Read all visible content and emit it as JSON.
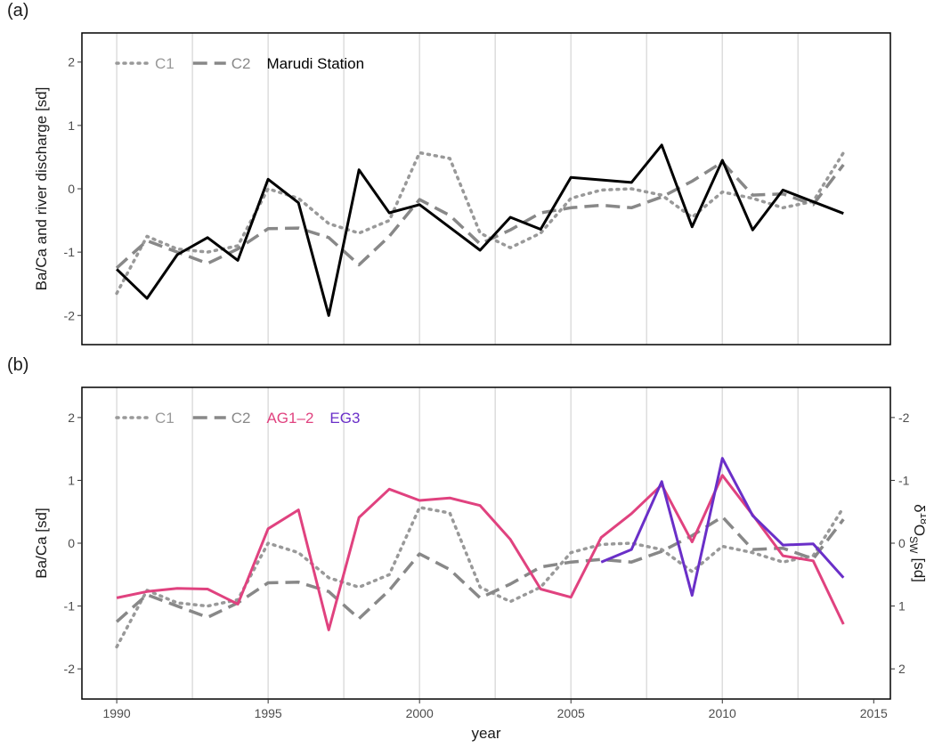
{
  "chart_data": [
    {
      "type": "line",
      "panel_label": "(a)",
      "ylabel": "Ba/Ca and river discharge [sd]",
      "xlim": [
        1988.85,
        2015.55
      ],
      "ylim": [
        -2.46,
        2.46
      ],
      "yticks": [
        -2,
        -1,
        0,
        1,
        2
      ],
      "xgrid": [
        1990,
        1992.5,
        1995,
        1997.5,
        2000,
        2002.5,
        2005,
        2007.5,
        2010,
        2012.5
      ],
      "series": [
        {
          "name": "C1",
          "color": "#999999",
          "style": "dotted",
          "x": [
            1990,
            1991,
            1992,
            1993,
            1994,
            1995,
            1996,
            1997,
            1998,
            1999,
            2000,
            2001,
            2002,
            2003,
            2004,
            2005,
            2006,
            2007,
            2008,
            2009,
            2010,
            2011,
            2012,
            2013,
            2014
          ],
          "values": [
            -1.65,
            -0.75,
            -0.95,
            -1.0,
            -0.9,
            0.0,
            -0.15,
            -0.55,
            -0.7,
            -0.5,
            0.57,
            0.48,
            -0.7,
            -0.93,
            -0.7,
            -0.15,
            -0.02,
            0.0,
            -0.1,
            -0.45,
            -0.05,
            -0.15,
            -0.3,
            -0.2,
            0.57
          ]
        },
        {
          "name": "C2",
          "color": "#888888",
          "style": "dashed",
          "x": [
            1990,
            1991,
            1992,
            1993,
            1994,
            1995,
            1996,
            1997,
            1998,
            1999,
            2000,
            2001,
            2002,
            2003,
            2004,
            2005,
            2006,
            2007,
            2008,
            2009,
            2010,
            2011,
            2012,
            2013,
            2014
          ],
          "values": [
            -1.25,
            -0.82,
            -1.0,
            -1.18,
            -0.95,
            -0.63,
            -0.62,
            -0.77,
            -1.2,
            -0.75,
            -0.17,
            -0.42,
            -0.87,
            -0.65,
            -0.38,
            -0.3,
            -0.26,
            -0.3,
            -0.13,
            0.12,
            0.42,
            -0.1,
            -0.08,
            -0.25,
            0.38
          ]
        },
        {
          "name": "Marudi Station",
          "color": "#000000",
          "style": "solid",
          "x": [
            1990,
            1991,
            1992,
            1993,
            1994,
            1995,
            1996,
            1997,
            1998,
            1999,
            2000,
            2002,
            2003,
            2004,
            2005,
            2007,
            2008,
            2009,
            2010,
            2011,
            2012,
            2014
          ],
          "values": [
            -1.27,
            -1.73,
            -1.04,
            -0.77,
            -1.13,
            0.15,
            -0.22,
            -2.0,
            0.3,
            -0.38,
            -0.25,
            -0.97,
            -0.45,
            -0.64,
            0.18,
            0.1,
            0.69,
            -0.6,
            0.45,
            -0.65,
            -0.02,
            -0.39
          ]
        }
      ]
    },
    {
      "type": "line",
      "panel_label": "(b)",
      "ylabel": "Ba/Ca [sd]",
      "xlabel": "year",
      "xlim": [
        1988.85,
        2015.55
      ],
      "ylim": [
        -2.48,
        2.48
      ],
      "yticks": [
        -2,
        -1,
        0,
        1,
        2
      ],
      "y2lim": [
        2.48,
        -2.48
      ],
      "y2ticks": [
        -2,
        -1,
        0,
        1,
        2
      ],
      "y2label_parts": [
        "δ",
        "18",
        "O",
        "SW",
        "[sd]"
      ],
      "xticks": [
        1990,
        1995,
        2000,
        2005,
        2010,
        2015
      ],
      "xgrid": [
        1990,
        1992.5,
        1995,
        1997.5,
        2000,
        2002.5,
        2005,
        2007.5,
        2010,
        2012.5
      ],
      "series": [
        {
          "name": "C1",
          "color": "#999999",
          "style": "dotted",
          "x": [
            1990,
            1991,
            1992,
            1993,
            1994,
            1995,
            1996,
            1997,
            1998,
            1999,
            2000,
            2001,
            2002,
            2003,
            2004,
            2005,
            2006,
            2007,
            2008,
            2009,
            2010,
            2011,
            2012,
            2013,
            2014
          ],
          "values": [
            -1.65,
            -0.75,
            -0.95,
            -1.0,
            -0.9,
            0.0,
            -0.15,
            -0.55,
            -0.7,
            -0.5,
            0.57,
            0.48,
            -0.7,
            -0.93,
            -0.7,
            -0.15,
            -0.02,
            0.0,
            -0.1,
            -0.45,
            -0.05,
            -0.15,
            -0.3,
            -0.2,
            0.57
          ]
        },
        {
          "name": "C2",
          "color": "#888888",
          "style": "dashed",
          "x": [
            1990,
            1991,
            1992,
            1993,
            1994,
            1995,
            1996,
            1997,
            1998,
            1999,
            2000,
            2001,
            2002,
            2003,
            2004,
            2005,
            2006,
            2007,
            2008,
            2009,
            2010,
            2011,
            2012,
            2013,
            2014
          ],
          "values": [
            -1.25,
            -0.82,
            -1.0,
            -1.18,
            -0.95,
            -0.63,
            -0.62,
            -0.77,
            -1.2,
            -0.75,
            -0.17,
            -0.42,
            -0.87,
            -0.65,
            -0.38,
            -0.3,
            -0.26,
            -0.3,
            -0.13,
            0.12,
            0.42,
            -0.1,
            -0.08,
            -0.25,
            0.38
          ]
        },
        {
          "name": "AG1–2",
          "color": "#e0427f",
          "style": "solid",
          "axis": "y2",
          "x": [
            1990,
            1991,
            1992,
            1993,
            1994,
            1995,
            1996,
            1997,
            1998,
            1999,
            2000,
            2001,
            2002,
            2003,
            2004,
            2005,
            2006,
            2007,
            2008,
            2009,
            2010,
            2011,
            2012,
            2013,
            2014
          ],
          "values": [
            0.87,
            0.77,
            0.72,
            0.73,
            0.97,
            -0.23,
            -0.53,
            1.38,
            -0.41,
            -0.86,
            -0.68,
            -0.72,
            -0.6,
            -0.06,
            0.73,
            0.86,
            -0.09,
            -0.47,
            -0.93,
            -0.02,
            -1.08,
            -0.45,
            0.2,
            0.28,
            1.29
          ]
        },
        {
          "name": "EG3",
          "color": "#6a2fc8",
          "style": "solid",
          "axis": "y2",
          "x": [
            2006,
            2007,
            2008,
            2009,
            2010,
            2011,
            2012,
            2013,
            2014
          ],
          "values": [
            0.3,
            0.1,
            -0.98,
            0.83,
            -1.35,
            -0.44,
            0.03,
            0.01,
            0.55
          ]
        }
      ]
    }
  ]
}
